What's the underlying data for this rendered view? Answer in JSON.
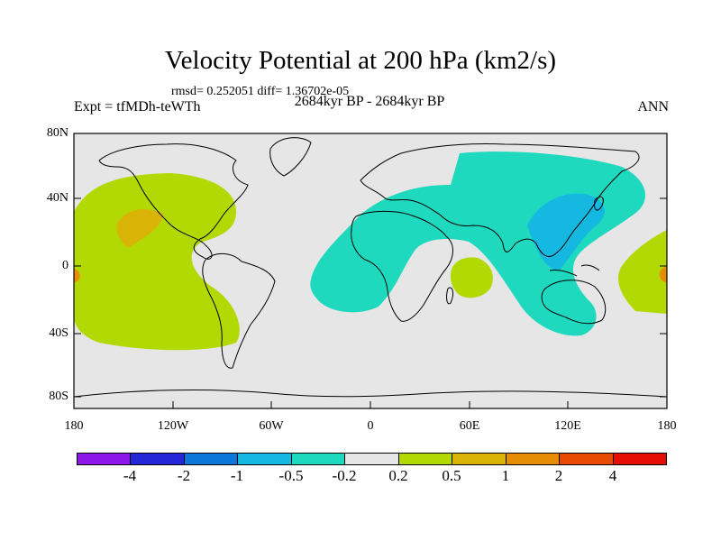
{
  "header": {
    "title": "Velocity Potential at 200 hPa (km2/s)",
    "stats": "rmsd= 0.252051 diff= 1.36702e-05",
    "experiment": "Expt = tfMDh-teWTh",
    "period": "2684kyr BP - 2684kyr BP",
    "season": "ANN"
  },
  "axes": {
    "y_labels": [
      "80N",
      "40N",
      "0",
      "40S",
      "80S"
    ],
    "x_labels": [
      "180",
      "120W",
      "60W",
      "0",
      "60E",
      "120E",
      "180"
    ]
  },
  "colorbar": {
    "colors": [
      "#8c17e6",
      "#2626d9",
      "#0d76d9",
      "#14b8e0",
      "#1fd9bf",
      "#e6e6e6",
      "#b3d905",
      "#d9b305",
      "#e68c05",
      "#e64a05",
      "#e60d05"
    ],
    "labels": [
      "-4",
      "-2",
      "-1",
      "-0.5",
      "-0.2",
      "0.2",
      "0.5",
      "1",
      "2",
      "4"
    ]
  },
  "map_colors": {
    "background": "#e6e6e6",
    "neg_weak": "#1fd9bf",
    "neg_mid": "#14b8e0",
    "pos_weak": "#b3d905",
    "pos_mid": "#d9b305",
    "pos_strong": "#e68c05",
    "coast": "#000000"
  }
}
